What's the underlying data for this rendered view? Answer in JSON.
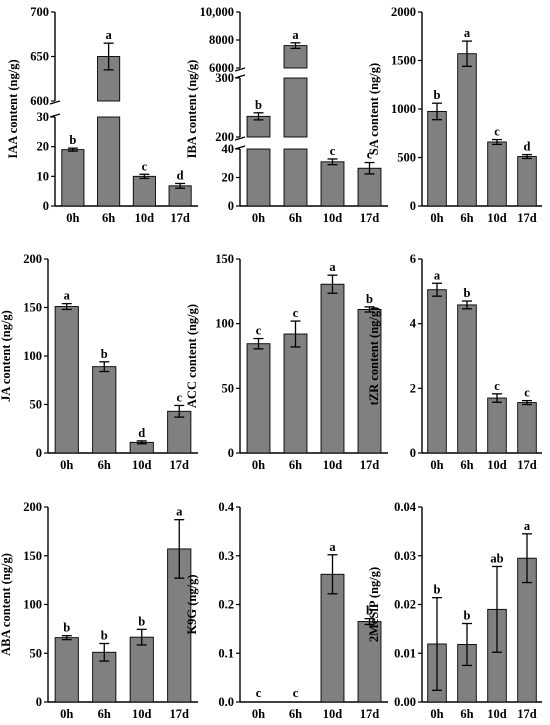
{
  "style": {
    "bar_color": "#808080",
    "axis_color": "#000000"
  },
  "chart_data": [
    {
      "type": "bar",
      "id": "iaa",
      "ylabel": "IAA content (ng/g)",
      "categories": [
        "0h",
        "6h",
        "10d",
        "17d"
      ],
      "values": [
        19,
        650,
        10,
        6.8
      ],
      "errors": [
        0.5,
        15,
        0.7,
        0.8
      ],
      "letters": [
        "b",
        "a",
        "c",
        "d"
      ],
      "broken_axis": true,
      "lower_ylim": [
        0,
        30
      ],
      "lower_ticks": [
        "0",
        "10",
        "20",
        "30"
      ],
      "upper_ylim": [
        600,
        700
      ],
      "upper_ticks": [
        "600",
        "650",
        "700"
      ]
    },
    {
      "type": "bar",
      "id": "iba",
      "ylabel": "IBA content (ng/g)",
      "categories": [
        "0h",
        "6h",
        "10d",
        "17d"
      ],
      "values": [
        235,
        7600,
        31,
        26.5
      ],
      "errors": [
        6,
        200,
        2,
        4
      ],
      "letters": [
        "b",
        "a",
        "c",
        "c"
      ],
      "broken_axis": true,
      "lower_ylim": [
        0,
        40
      ],
      "lower_ticks": [
        "0",
        "20",
        "40"
      ],
      "mid_ylim": [
        200,
        300
      ],
      "mid_ticks": [
        "200",
        "300"
      ],
      "upper_ylim": [
        6000,
        10000
      ],
      "upper_ticks": [
        "6000",
        "8000",
        "10,000"
      ]
    },
    {
      "type": "bar",
      "id": "sa",
      "ylabel": "SA content (ng/g)",
      "categories": [
        "0h",
        "6h",
        "10d",
        "17d"
      ],
      "values": [
        975,
        1570,
        660,
        510
      ],
      "errors": [
        85,
        130,
        25,
        20
      ],
      "letters": [
        "b",
        "a",
        "c",
        "d"
      ],
      "ylim": [
        0,
        2000
      ],
      "ticks": [
        "0",
        "500",
        "1000",
        "1500",
        "2000"
      ]
    },
    {
      "type": "bar",
      "id": "ja",
      "ylabel": "JA content (ng/g)",
      "categories": [
        "0h",
        "6h",
        "10d",
        "17d"
      ],
      "values": [
        151,
        89,
        11,
        43
      ],
      "errors": [
        3,
        5,
        1.5,
        6
      ],
      "letters": [
        "a",
        "b",
        "d",
        "c"
      ],
      "ylim": [
        0,
        200
      ],
      "ticks": [
        "0",
        "50",
        "100",
        "150",
        "200"
      ]
    },
    {
      "type": "bar",
      "id": "acc",
      "ylabel": "ACC content (ng/g)",
      "categories": [
        "0h",
        "6h",
        "10d",
        "17d"
      ],
      "values": [
        84.5,
        92,
        130.5,
        111
      ],
      "errors": [
        4,
        10,
        7,
        2
      ],
      "letters": [
        "c",
        "c",
        "a",
        "b"
      ],
      "ylim": [
        0,
        150
      ],
      "ticks": [
        "0",
        "50",
        "100",
        "150"
      ]
    },
    {
      "type": "bar",
      "id": "tzr",
      "ylabel": "tZR content (ng/g)",
      "categories": [
        "0h",
        "6h",
        "10d",
        "17d"
      ],
      "values": [
        5.05,
        4.58,
        1.7,
        1.56
      ],
      "errors": [
        0.2,
        0.12,
        0.13,
        0.06
      ],
      "letters": [
        "a",
        "b",
        "c",
        "c"
      ],
      "ylim": [
        0,
        6
      ],
      "ticks": [
        "0",
        "2",
        "4",
        "6"
      ]
    },
    {
      "type": "bar",
      "id": "aba",
      "ylabel": "ABA content (ng/g)",
      "categories": [
        "0h",
        "6h",
        "10d",
        "17d"
      ],
      "values": [
        66,
        51,
        66.5,
        157
      ],
      "errors": [
        2,
        9,
        8,
        30
      ],
      "letters": [
        "b",
        "b",
        "b",
        "a"
      ],
      "ylim": [
        0,
        200
      ],
      "ticks": [
        "0",
        "50",
        "100",
        "150",
        "200"
      ]
    },
    {
      "type": "bar",
      "id": "k9g",
      "ylabel": "K9G (ng/g)",
      "categories": [
        "0h",
        "6h",
        "10d",
        "17d"
      ],
      "values": [
        0,
        0,
        0.262,
        0.165
      ],
      "errors": [
        0,
        0,
        0.04,
        0.006
      ],
      "letters": [
        "c",
        "c",
        "a",
        "b"
      ],
      "ylim": [
        0,
        0.4
      ],
      "ticks": [
        "0.0",
        "0.1",
        "0.2",
        "0.3",
        "0.4"
      ]
    },
    {
      "type": "bar",
      "id": "mesip",
      "ylabel": "2MeSiP (ng/g)",
      "categories": [
        "0h",
        "6h",
        "10d",
        "17d"
      ],
      "values": [
        0.0119,
        0.0118,
        0.019,
        0.0295
      ],
      "errors": [
        0.0095,
        0.0043,
        0.0088,
        0.005
      ],
      "letters": [
        "b",
        "b",
        "ab",
        "a"
      ],
      "ylim": [
        0,
        0.04
      ],
      "ticks": [
        "0.00",
        "0.01",
        "0.02",
        "0.03",
        "0.04"
      ]
    }
  ]
}
